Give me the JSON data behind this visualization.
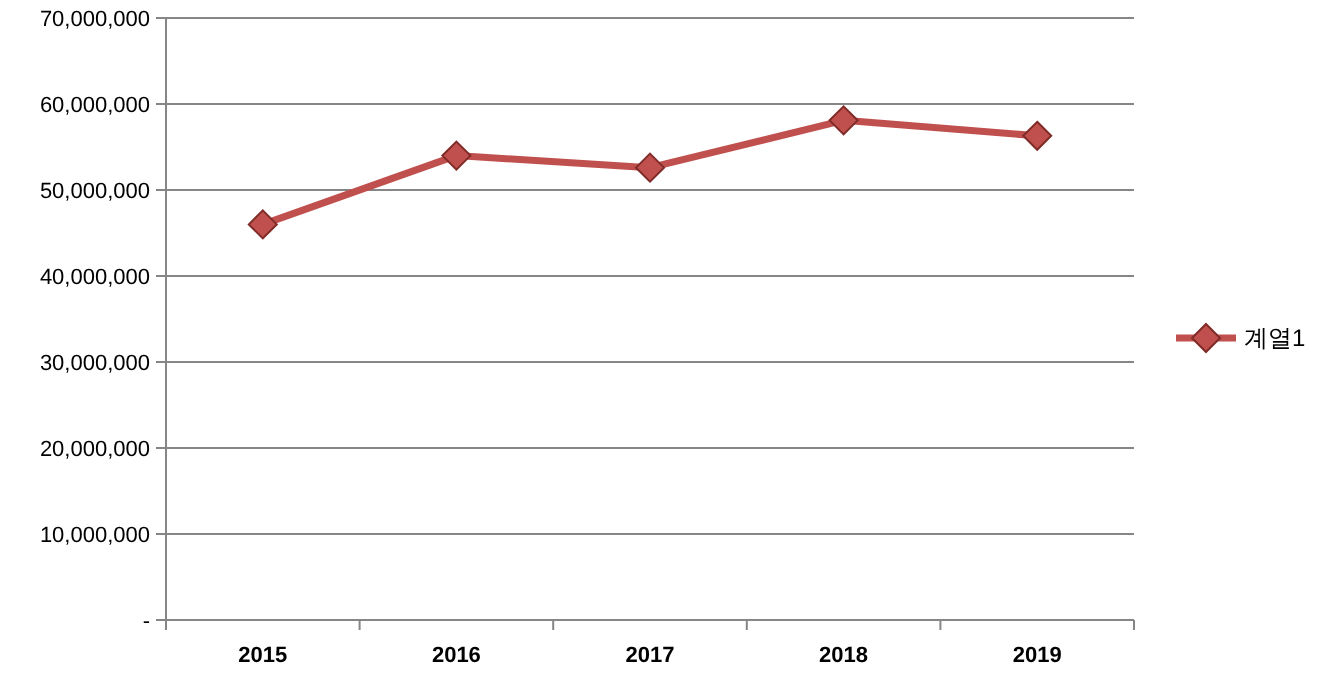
{
  "chart_data": {
    "type": "line",
    "categories": [
      "2015",
      "2016",
      "2017",
      "2018",
      "2019"
    ],
    "series": [
      {
        "name": "계열1",
        "color": "#c0504d",
        "values": [
          46000000,
          54000000,
          52600000,
          58100000,
          56300000
        ]
      }
    ],
    "ylim": [
      0,
      70000000
    ],
    "yticks": [
      {
        "value": 0,
        "label": "-"
      },
      {
        "value": 10000000,
        "label": "10,000,000"
      },
      {
        "value": 20000000,
        "label": "20,000,000"
      },
      {
        "value": 30000000,
        "label": "30,000,000"
      },
      {
        "value": 40000000,
        "label": "40,000,000"
      },
      {
        "value": 50000000,
        "label": "50,000,000"
      },
      {
        "value": 60000000,
        "label": "60,000,000"
      },
      {
        "value": 70000000,
        "label": "70,000,000"
      }
    ],
    "grid": "y",
    "legend": "right",
    "marker": "diamond"
  }
}
